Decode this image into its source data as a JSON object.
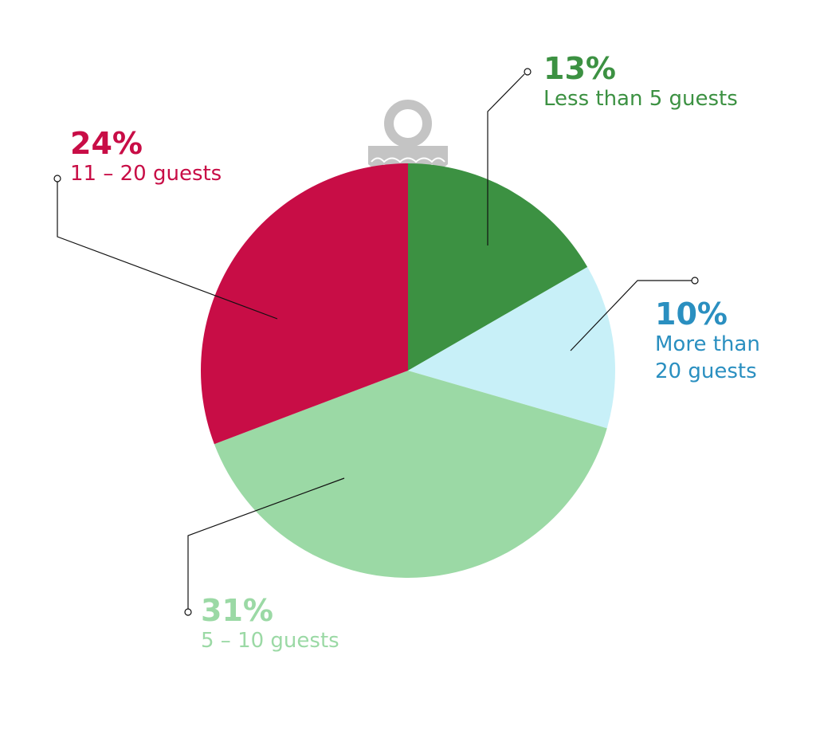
{
  "chart_data": {
    "type": "pie",
    "categories": [
      "Less than 5 guests",
      "More than 20 guests",
      "5 – 10 guests",
      "11 – 20 guests"
    ],
    "values": [
      13,
      10,
      31,
      24
    ],
    "value_labels": [
      "13%",
      "10%",
      "31%",
      "24%"
    ],
    "colors": [
      "#3c9142",
      "#c8f0f8",
      "#9bd9a5",
      "#c80d46"
    ],
    "label_colors": [
      "#3c9142",
      "#2a8fc0",
      "#9bd9a5",
      "#c80d46"
    ]
  }
}
